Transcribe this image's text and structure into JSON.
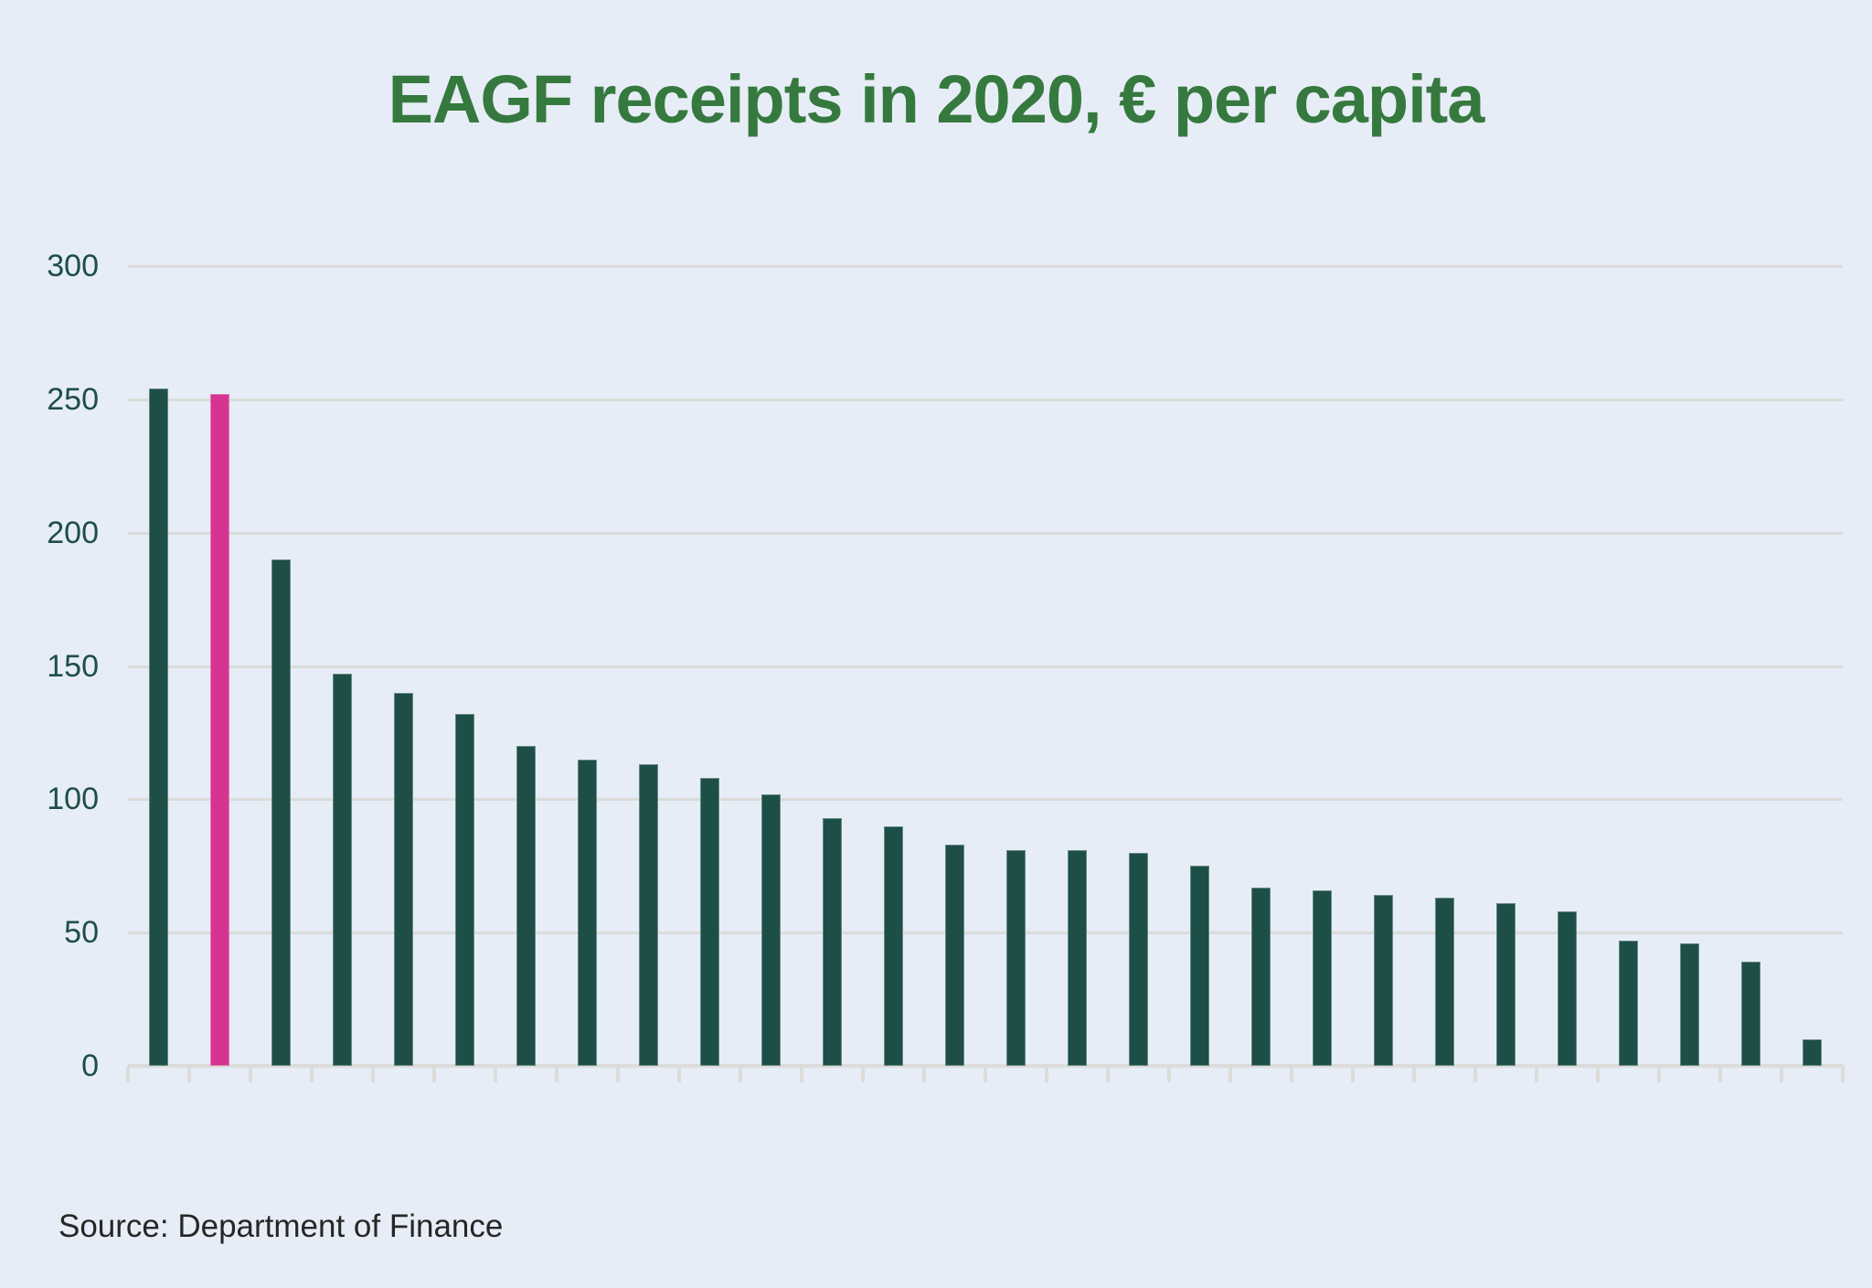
{
  "title": "EAGF receipts in 2020, € per capita",
  "source_note": "Source: Department of Finance",
  "chart_data": {
    "type": "bar",
    "title": "EAGF receipts in 2020, € per capita",
    "subtitle": "",
    "source": "Source: Department of Finance",
    "xlabel": "",
    "ylabel": "",
    "x_axis_labels_shown": false,
    "values": [
      254,
      252,
      190,
      147,
      140,
      132,
      120,
      115,
      113,
      108,
      102,
      93,
      90,
      83,
      81,
      81,
      80,
      75,
      67,
      66,
      64,
      63,
      61,
      58,
      47,
      46,
      39,
      10
    ],
    "highlight_index": 1,
    "ylim": [
      0,
      300
    ],
    "yticks": [
      300,
      250,
      200,
      150,
      100,
      50,
      0
    ],
    "grid": true,
    "legend": "none",
    "colors": {
      "bar": "#1d4f48",
      "highlight": "#d53590",
      "background": "#e7edf6",
      "gridline": "#dbdbd9",
      "axis": "#dcdcd9",
      "tick_label": "#1d4e47",
      "title": "#36793f",
      "source_text": "#262626"
    }
  }
}
